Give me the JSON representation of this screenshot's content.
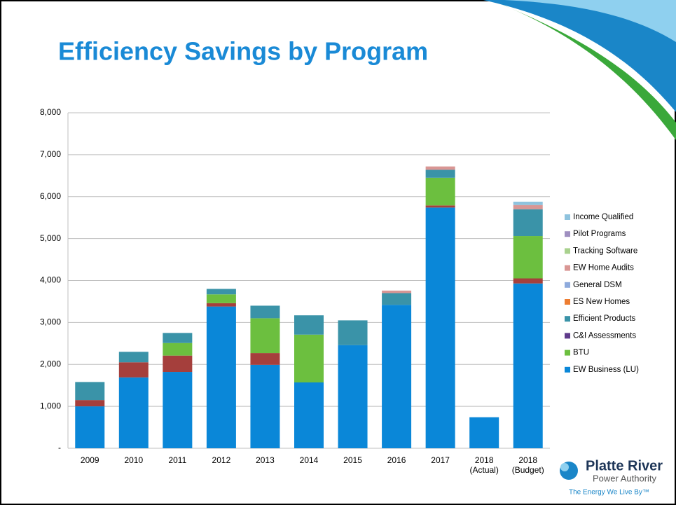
{
  "chart_data": {
    "type": "stacked_bar",
    "title": "Efficiency Savings by Program",
    "categories": [
      "2009",
      "2010",
      "2011",
      "2012",
      "2013",
      "2014",
      "2015",
      "2016",
      "2017",
      "2018\n(Actual)",
      "2018\n(Budget)"
    ],
    "series": [
      {
        "name": "EW Business (LU)",
        "color": "#0a87d8",
        "values": [
          1000,
          1690,
          1820,
          3380,
          1990,
          1570,
          2460,
          3420,
          5740,
          740,
          3930
        ]
      },
      {
        "name": null,
        "color": "#a53f3c",
        "values": [
          150,
          360,
          390,
          80,
          280,
          0,
          0,
          0,
          50,
          0,
          120
        ]
      },
      {
        "name": "BTU",
        "color": "#6cbf3f",
        "values": [
          0,
          0,
          300,
          210,
          830,
          1140,
          0,
          0,
          660,
          0,
          1010
        ]
      },
      {
        "name": "C&I Assessments",
        "color": "#5f3b8b",
        "values": [
          0,
          0,
          0,
          0,
          0,
          0,
          0,
          0,
          0,
          0,
          0
        ]
      },
      {
        "name": "Efficient Products",
        "color": "#3a93a8",
        "values": [
          430,
          250,
          240,
          130,
          300,
          460,
          590,
          280,
          190,
          0,
          640
        ]
      },
      {
        "name": "ES New Homes",
        "color": "#ed7d31",
        "values": [
          0,
          0,
          0,
          0,
          0,
          0,
          0,
          0,
          0,
          0,
          0
        ]
      },
      {
        "name": "General DSM",
        "color": "#8eaadc",
        "values": [
          0,
          0,
          0,
          0,
          0,
          0,
          0,
          0,
          0,
          0,
          0
        ]
      },
      {
        "name": "EW Home Audits",
        "color": "#d99694",
        "values": [
          0,
          0,
          0,
          0,
          0,
          0,
          0,
          60,
          80,
          0,
          100
        ]
      },
      {
        "name": "Tracking Software",
        "color": "#a9d18e",
        "values": [
          0,
          0,
          0,
          0,
          0,
          0,
          0,
          0,
          0,
          0,
          0
        ]
      },
      {
        "name": "Pilot Programs",
        "color": "#9f8fc0",
        "values": [
          0,
          0,
          0,
          0,
          0,
          0,
          0,
          0,
          0,
          0,
          0
        ]
      },
      {
        "name": "Income Qualified",
        "color": "#8fc3de",
        "values": [
          0,
          0,
          0,
          0,
          0,
          0,
          0,
          0,
          0,
          0,
          80
        ]
      }
    ],
    "ylim": [
      0,
      8000
    ],
    "yticks": [
      {
        "value": 0,
        "label": "-"
      },
      {
        "value": 1000,
        "label": "1,000"
      },
      {
        "value": 2000,
        "label": "2,000"
      },
      {
        "value": 3000,
        "label": "3,000"
      },
      {
        "value": 4000,
        "label": "4,000"
      },
      {
        "value": 5000,
        "label": "5,000"
      },
      {
        "value": 6000,
        "label": "6,000"
      },
      {
        "value": 7000,
        "label": "7,000"
      },
      {
        "value": 8000,
        "label": "8,000"
      }
    ],
    "grid": true,
    "legend": "right"
  },
  "logo": {
    "name": "Platte River",
    "subtitle": "Power Authority",
    "tagline": "The Energy We Live By™"
  }
}
